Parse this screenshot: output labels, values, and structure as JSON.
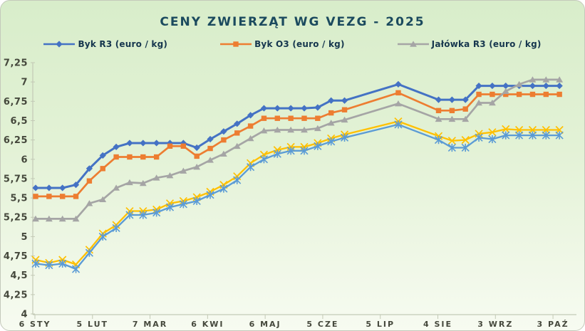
{
  "title": "CENY ZWIERZĄT WG VEZG - 2025",
  "colors": {
    "title_text": "#1b4a5e",
    "legend_text": "#16364e",
    "axis_text": "#45483c",
    "axis_line": "#c3c9b6",
    "card_bg_top": "#d8edca",
    "card_bg_bottom": "#f7fbf1"
  },
  "chart_data": {
    "type": "line",
    "title": "CENY ZWIERZĄT WG VEZG - 2025",
    "xlabel": "",
    "ylabel": "",
    "grid": false,
    "legend_position": "top",
    "y_axis": {
      "min": 4,
      "max": 7.25,
      "step": 0.25,
      "decimal_separator": ",",
      "tick_labels": [
        "4",
        "4,25",
        "4,5",
        "4,75",
        "5",
        "5,25",
        "5,5",
        "5,75",
        "6",
        "6,25",
        "6,5",
        "6,75",
        "7",
        "7,25"
      ]
    },
    "x_axis": {
      "tick_labels": [
        "6 STY",
        "5 LUT",
        "7 MAR",
        "6 KWI",
        "6 MAJ",
        "5 CZE",
        "5 LIP",
        "4 SIE",
        "3 WRZ",
        "3 PAŹ"
      ],
      "tick_interval_days": 30,
      "point_interval_days": 7,
      "unit": "week_index_from_first_point"
    },
    "series": [
      {
        "id": "byk-r3",
        "legend_label": "Byk R3 (euro / kg)",
        "in_legend": true,
        "color": "#4472c4",
        "marker": "diamond",
        "line_width": 3,
        "points": [
          [
            0,
            5.63
          ],
          [
            1,
            5.63
          ],
          [
            2,
            5.63
          ],
          [
            3,
            5.67
          ],
          [
            4,
            5.88
          ],
          [
            5,
            6.05
          ],
          [
            6,
            6.16
          ],
          [
            7,
            6.21
          ],
          [
            8,
            6.21
          ],
          [
            9,
            6.21
          ],
          [
            10,
            6.21
          ],
          [
            11,
            6.21
          ],
          [
            12,
            6.15
          ],
          [
            13,
            6.26
          ],
          [
            14,
            6.36
          ],
          [
            15,
            6.46
          ],
          [
            16,
            6.57
          ],
          [
            17,
            6.66
          ],
          [
            18,
            6.66
          ],
          [
            19,
            6.66
          ],
          [
            20,
            6.66
          ],
          [
            21,
            6.67
          ],
          [
            22,
            6.76
          ],
          [
            23,
            6.76
          ],
          [
            27,
            6.97
          ],
          [
            30,
            6.77
          ],
          [
            31,
            6.77
          ],
          [
            32,
            6.77
          ],
          [
            33,
            6.95
          ],
          [
            34,
            6.95
          ],
          [
            35,
            6.95
          ],
          [
            36,
            6.95
          ],
          [
            37,
            6.95
          ],
          [
            38,
            6.95
          ],
          [
            39,
            6.95
          ]
        ]
      },
      {
        "id": "byk-o3",
        "legend_label": "Byk O3 (euro / kg)",
        "in_legend": true,
        "color": "#ed7d31",
        "marker": "square",
        "line_width": 2.7,
        "points": [
          [
            0,
            5.52
          ],
          [
            1,
            5.52
          ],
          [
            2,
            5.52
          ],
          [
            3,
            5.52
          ],
          [
            4,
            5.72
          ],
          [
            5,
            5.88
          ],
          [
            6,
            6.03
          ],
          [
            7,
            6.03
          ],
          [
            8,
            6.03
          ],
          [
            9,
            6.03
          ],
          [
            10,
            6.17
          ],
          [
            11,
            6.17
          ],
          [
            12,
            6.04
          ],
          [
            13,
            6.14
          ],
          [
            14,
            6.25
          ],
          [
            15,
            6.34
          ],
          [
            16,
            6.43
          ],
          [
            17,
            6.53
          ],
          [
            18,
            6.53
          ],
          [
            19,
            6.53
          ],
          [
            20,
            6.53
          ],
          [
            21,
            6.53
          ],
          [
            22,
            6.6
          ],
          [
            23,
            6.64
          ],
          [
            27,
            6.86
          ],
          [
            30,
            6.63
          ],
          [
            31,
            6.63
          ],
          [
            32,
            6.65
          ],
          [
            33,
            6.84
          ],
          [
            34,
            6.84
          ],
          [
            35,
            6.84
          ],
          [
            36,
            6.84
          ],
          [
            37,
            6.84
          ],
          [
            38,
            6.84
          ],
          [
            39,
            6.84
          ]
        ]
      },
      {
        "id": "jalowka-r3",
        "legend_label": "Jałówka R3 (euro / kg)",
        "in_legend": true,
        "color": "#a5a5a5",
        "marker": "triangle",
        "line_width": 2.7,
        "points": [
          [
            0,
            5.23
          ],
          [
            1,
            5.23
          ],
          [
            2,
            5.23
          ],
          [
            3,
            5.23
          ],
          [
            4,
            5.43
          ],
          [
            5,
            5.48
          ],
          [
            6,
            5.63
          ],
          [
            7,
            5.7
          ],
          [
            8,
            5.69
          ],
          [
            9,
            5.76
          ],
          [
            10,
            5.79
          ],
          [
            11,
            5.85
          ],
          [
            12,
            5.9
          ],
          [
            13,
            5.99
          ],
          [
            14,
            6.07
          ],
          [
            15,
            6.17
          ],
          [
            16,
            6.27
          ],
          [
            17,
            6.37
          ],
          [
            18,
            6.38
          ],
          [
            19,
            6.38
          ],
          [
            20,
            6.38
          ],
          [
            21,
            6.4
          ],
          [
            22,
            6.47
          ],
          [
            23,
            6.51
          ],
          [
            27,
            6.72
          ],
          [
            30,
            6.52
          ],
          [
            31,
            6.52
          ],
          [
            32,
            6.52
          ],
          [
            33,
            6.73
          ],
          [
            34,
            6.73
          ],
          [
            35,
            6.88
          ],
          [
            36,
            6.97
          ],
          [
            37,
            7.03
          ],
          [
            38,
            7.03
          ],
          [
            39,
            7.03
          ]
        ]
      },
      {
        "id": "series-4-yellow",
        "legend_label": "",
        "in_legend": false,
        "color": "#ffc000",
        "marker": "x",
        "line_width": 2.3,
        "points": [
          [
            0,
            4.7
          ],
          [
            1,
            4.66
          ],
          [
            2,
            4.7
          ],
          [
            3,
            4.64
          ],
          [
            4,
            4.83
          ],
          [
            5,
            5.04
          ],
          [
            6,
            5.15
          ],
          [
            7,
            5.33
          ],
          [
            8,
            5.33
          ],
          [
            9,
            5.35
          ],
          [
            10,
            5.43
          ],
          [
            11,
            5.46
          ],
          [
            12,
            5.51
          ],
          [
            13,
            5.58
          ],
          [
            14,
            5.67
          ],
          [
            15,
            5.78
          ],
          [
            16,
            5.95
          ],
          [
            17,
            6.06
          ],
          [
            18,
            6.12
          ],
          [
            19,
            6.16
          ],
          [
            20,
            6.16
          ],
          [
            21,
            6.21
          ],
          [
            22,
            6.27
          ],
          [
            23,
            6.32
          ],
          [
            27,
            6.49
          ],
          [
            30,
            6.3
          ],
          [
            31,
            6.24
          ],
          [
            32,
            6.25
          ],
          [
            33,
            6.33
          ],
          [
            34,
            6.35
          ],
          [
            35,
            6.39
          ],
          [
            36,
            6.38
          ],
          [
            37,
            6.38
          ],
          [
            38,
            6.38
          ],
          [
            39,
            6.38
          ]
        ]
      },
      {
        "id": "series-5-lightblue",
        "legend_label": "",
        "in_legend": false,
        "color": "#5b9bd5",
        "marker": "star",
        "line_width": 2.3,
        "points": [
          [
            0,
            4.65
          ],
          [
            1,
            4.63
          ],
          [
            2,
            4.65
          ],
          [
            3,
            4.58
          ],
          [
            4,
            4.79
          ],
          [
            5,
            5.0
          ],
          [
            6,
            5.11
          ],
          [
            7,
            5.28
          ],
          [
            8,
            5.28
          ],
          [
            9,
            5.31
          ],
          [
            10,
            5.38
          ],
          [
            11,
            5.42
          ],
          [
            12,
            5.46
          ],
          [
            13,
            5.54
          ],
          [
            14,
            5.62
          ],
          [
            15,
            5.73
          ],
          [
            16,
            5.9
          ],
          [
            17,
            6.0
          ],
          [
            18,
            6.07
          ],
          [
            19,
            6.11
          ],
          [
            20,
            6.11
          ],
          [
            21,
            6.17
          ],
          [
            22,
            6.23
          ],
          [
            23,
            6.28
          ],
          [
            27,
            6.45
          ],
          [
            30,
            6.25
          ],
          [
            31,
            6.15
          ],
          [
            32,
            6.15
          ],
          [
            33,
            6.28
          ],
          [
            34,
            6.26
          ],
          [
            35,
            6.31
          ],
          [
            36,
            6.31
          ],
          [
            37,
            6.31
          ],
          [
            38,
            6.31
          ],
          [
            39,
            6.31
          ]
        ]
      }
    ]
  }
}
